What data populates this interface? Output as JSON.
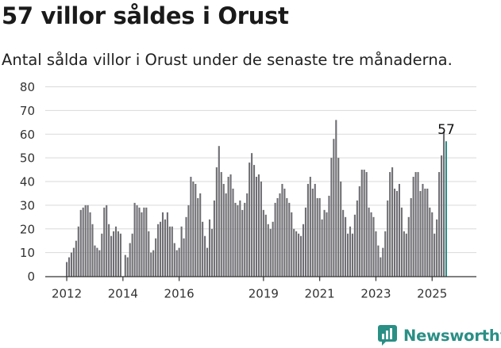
{
  "title": "57 villor såldes i Orust",
  "subtitle": "Antal sålda villor i Orust under de senaste tre månaderna.",
  "brand": {
    "name": "Newsworthy",
    "icon": "newsworthy-logo-icon",
    "color": "#2a8f85"
  },
  "colors": {
    "bar": "#6f6e73",
    "highlight": "#2a8f85",
    "grid": "#d9d9d9",
    "axis": "#333333"
  },
  "chart_data": {
    "type": "bar",
    "title": "57 villor såldes i Orust",
    "xlabel": "",
    "ylabel": "",
    "ylim": [
      0,
      80
    ],
    "yticks": [
      "0",
      "10",
      "20",
      "30",
      "40",
      "50",
      "60",
      "70",
      "80"
    ],
    "xticks": [
      "2012",
      "2014",
      "2016",
      "2019",
      "2021",
      "2023",
      "2025"
    ],
    "grid": true,
    "start": "2012-01",
    "frequency": "monthly",
    "annotation": {
      "text": "57",
      "index": 162
    },
    "series": [
      {
        "values": [
          6,
          8,
          10,
          12,
          15,
          21,
          28,
          29,
          30,
          30,
          27,
          22,
          13,
          12,
          11,
          18,
          29,
          30,
          22,
          17,
          19,
          21,
          19,
          18,
          0,
          9,
          8,
          14,
          18,
          31,
          30,
          29,
          27,
          29,
          29,
          19,
          10,
          11,
          16,
          22,
          23,
          27,
          24,
          27,
          21,
          21,
          14,
          11,
          12,
          21,
          16,
          25,
          30,
          42,
          40,
          39,
          33,
          35,
          23,
          17,
          12,
          24,
          20,
          32,
          46,
          55,
          44,
          39,
          35,
          42,
          43,
          37,
          31,
          30,
          32,
          28,
          31,
          35,
          48,
          52,
          47,
          42,
          43,
          40,
          28,
          26,
          22,
          20,
          23,
          31,
          33,
          35,
          39,
          37,
          33,
          31,
          27,
          20,
          19,
          18,
          17,
          22,
          29,
          39,
          42,
          37,
          39,
          33,
          33,
          24,
          28,
          27,
          34,
          50,
          58,
          66,
          50,
          40,
          28,
          25,
          18,
          21,
          18,
          26,
          32,
          38,
          45,
          45,
          44,
          29,
          27,
          25,
          19,
          13,
          8,
          12,
          19,
          32,
          44,
          46,
          37,
          36,
          39,
          29,
          19,
          18,
          25,
          33,
          42,
          44,
          44,
          36,
          39,
          37,
          37,
          29,
          27,
          18,
          24,
          44,
          51,
          61,
          57
        ]
      }
    ]
  }
}
